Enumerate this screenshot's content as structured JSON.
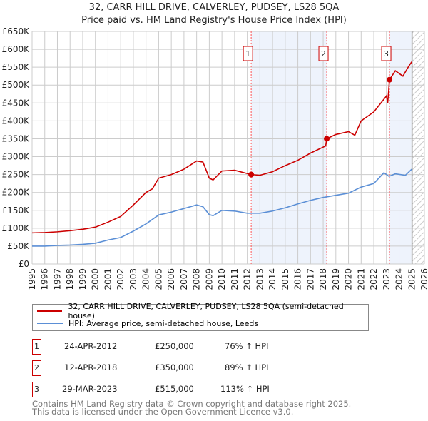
{
  "title": "32, CARR HILL DRIVE, CALVERLEY, PUDSEY, LS28 5QA",
  "subtitle": "Price paid vs. HM Land Registry's House Price Index (HPI)",
  "colors": {
    "property": "#cc0000",
    "hpi": "#5b8fd6",
    "shade": "#eef3fc"
  },
  "chart_data": {
    "type": "line",
    "ylim": [
      0,
      650000
    ],
    "xlim": [
      1995,
      2026
    ],
    "yticks": [
      "£0",
      "£50K",
      "£100K",
      "£150K",
      "£200K",
      "£250K",
      "£300K",
      "£350K",
      "£400K",
      "£450K",
      "£500K",
      "£550K",
      "£600K",
      "£650K"
    ],
    "xticks": [
      "1995",
      "1996",
      "1997",
      "1998",
      "1999",
      "2000",
      "2001",
      "2002",
      "2003",
      "2004",
      "2005",
      "2006",
      "2007",
      "2008",
      "2009",
      "2010",
      "2011",
      "2012",
      "2013",
      "2014",
      "2015",
      "2016",
      "2017",
      "2018",
      "2019",
      "2020",
      "2021",
      "2022",
      "2023",
      "2024",
      "2025",
      "2026"
    ],
    "series": [
      {
        "name": "32, CARR HILL DRIVE, CALVERLEY, PUDSEY, LS28 5QA (semi-detached house)",
        "x": [
          1995,
          1996,
          1997,
          1998,
          1999,
          2000,
          2001,
          2002,
          2003,
          2004,
          2004.5,
          2005,
          2006,
          2007,
          2008,
          2008.5,
          2009,
          2009.3,
          2010,
          2011,
          2012.31,
          2013,
          2014,
          2015,
          2016,
          2017,
          2018.2,
          2018.28,
          2019,
          2020,
          2020.5,
          2021,
          2022,
          2022.9,
          2023.0,
          2023.1,
          2023.24,
          2023.7,
          2024.3,
          2024.8,
          2025.0
        ],
        "y": [
          87000,
          88000,
          90000,
          93000,
          97000,
          103000,
          117000,
          133000,
          165000,
          200000,
          210000,
          240000,
          250000,
          265000,
          288000,
          285000,
          240000,
          235000,
          260000,
          262000,
          250000,
          248000,
          258000,
          275000,
          290000,
          310000,
          330000,
          350000,
          362000,
          370000,
          360000,
          400000,
          425000,
          465000,
          470000,
          450000,
          515000,
          540000,
          525000,
          555000,
          565000
        ]
      },
      {
        "name": "HPI: Average price, semi-detached house, Leeds",
        "x": [
          1995,
          1996,
          1997,
          1998,
          1999,
          2000,
          2001,
          2002,
          2003,
          2004,
          2005,
          2006,
          2007,
          2008,
          2008.5,
          2009,
          2009.3,
          2010,
          2011,
          2012,
          2013,
          2014,
          2015,
          2016,
          2017,
          2018,
          2019,
          2020,
          2021,
          2022,
          2022.8,
          2023.2,
          2023.7,
          2024.5,
          2025.0
        ],
        "y": [
          50000,
          50000,
          52000,
          53000,
          55000,
          58000,
          67000,
          74000,
          92000,
          112000,
          137000,
          145000,
          155000,
          165000,
          160000,
          138000,
          135000,
          150000,
          148000,
          142000,
          142000,
          148000,
          157000,
          168000,
          178000,
          186000,
          192000,
          198000,
          215000,
          225000,
          255000,
          245000,
          252000,
          248000,
          265000
        ]
      }
    ],
    "sales": [
      {
        "n": "1",
        "x": 2012.31,
        "date": "24-APR-2012",
        "price": "£250,000",
        "value": 250000,
        "hpi": "76% ↑ HPI"
      },
      {
        "n": "2",
        "x": 2018.28,
        "date": "12-APR-2018",
        "price": "£350,000",
        "value": 350000,
        "hpi": "89% ↑ HPI"
      },
      {
        "n": "3",
        "x": 2023.24,
        "date": "29-MAR-2023",
        "price": "£515,000",
        "value": 515000,
        "hpi": "113% ↑ HPI"
      }
    ],
    "data_end": 2025.04
  },
  "footer": [
    "Contains HM Land Registry data © Crown copyright and database right 2025.",
    "This data is licensed under the Open Government Licence v3.0."
  ]
}
